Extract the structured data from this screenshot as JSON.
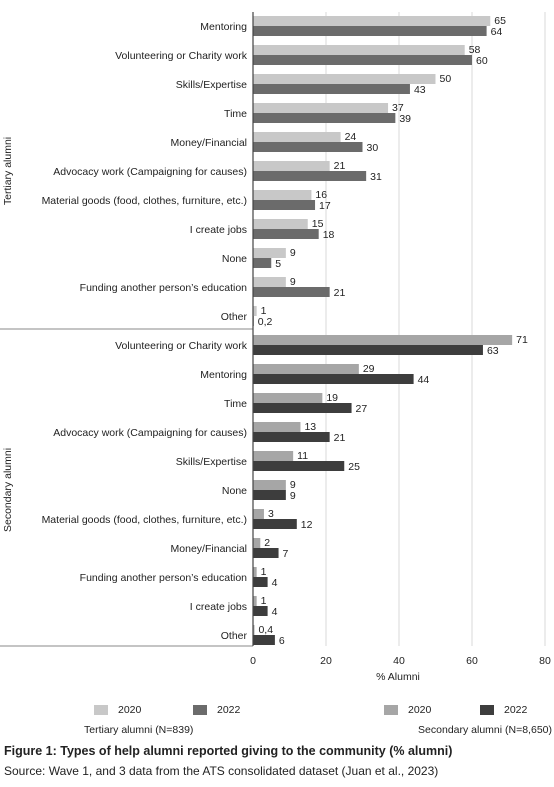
{
  "chart_data": {
    "type": "bar",
    "orientation": "horizontal",
    "xlabel": "% Alumni",
    "xlim": [
      0,
      80
    ],
    "xticks": [
      0,
      20,
      40,
      60,
      80
    ],
    "grid": true,
    "legend_position": "bottom",
    "groups": [
      {
        "name": "Tertiary alumni",
        "legend_caption": "Tertiary alumni (N=839)",
        "series_names": [
          "2020",
          "2022"
        ],
        "colors": [
          "#c8c8c8",
          "#6b6b6b"
        ],
        "categories": [
          "Mentoring",
          "Volunteering or Charity work",
          "Skills/Expertise",
          "Time",
          "Money/Financial",
          "Advocacy work (Campaigning for causes)",
          "Material goods (food, clothes, furniture, etc.)",
          "I create jobs",
          "None",
          "Funding another person’s education",
          "Other"
        ],
        "values_2020": [
          65,
          58,
          50,
          37,
          24,
          21,
          16,
          15,
          9,
          9,
          1
        ],
        "values_2022": [
          64,
          60,
          43,
          39,
          30,
          31,
          17,
          18,
          5,
          21,
          0.2
        ],
        "labels_2020": [
          "65",
          "58",
          "50",
          "37",
          "24",
          "21",
          "16",
          "15",
          "9",
          "9",
          "1"
        ],
        "labels_2022": [
          "64",
          "60",
          "43",
          "39",
          "30",
          "31",
          "17",
          "18",
          "5",
          "21",
          "0,2"
        ]
      },
      {
        "name": "Secondary alumni",
        "legend_caption": "Secondary alumni (N=8,650)",
        "series_names": [
          "2020",
          "2022"
        ],
        "colors": [
          "#a6a6a6",
          "#3d3d3d"
        ],
        "categories": [
          "Volunteering or Charity work",
          "Mentoring",
          "Time",
          "Advocacy work (Campaigning for causes)",
          "Skills/Expertise",
          "None",
          "Material goods (food, clothes, furniture, etc.)",
          "Money/Financial",
          "Funding another person’s education",
          "I create jobs",
          "Other"
        ],
        "values_2020": [
          71,
          29,
          19,
          13,
          11,
          9,
          3,
          2,
          1,
          1,
          0.4
        ],
        "values_2022": [
          63,
          44,
          27,
          21,
          25,
          9,
          12,
          7,
          4,
          4,
          6
        ],
        "labels_2020": [
          "71",
          "29",
          "19",
          "13",
          "11",
          "9",
          "3",
          "2",
          "1",
          "1",
          "0,4"
        ],
        "labels_2022": [
          "63",
          "44",
          "27",
          "21",
          "25",
          "9",
          "12",
          "7",
          "4",
          "4",
          "6"
        ]
      }
    ]
  },
  "figure": {
    "title": "Figure 1: Types of help alumni reported giving to the community (% alumni)",
    "source": "Source: Wave 1, and 3 data from the ATS consolidated dataset (Juan et al., 2023)"
  }
}
